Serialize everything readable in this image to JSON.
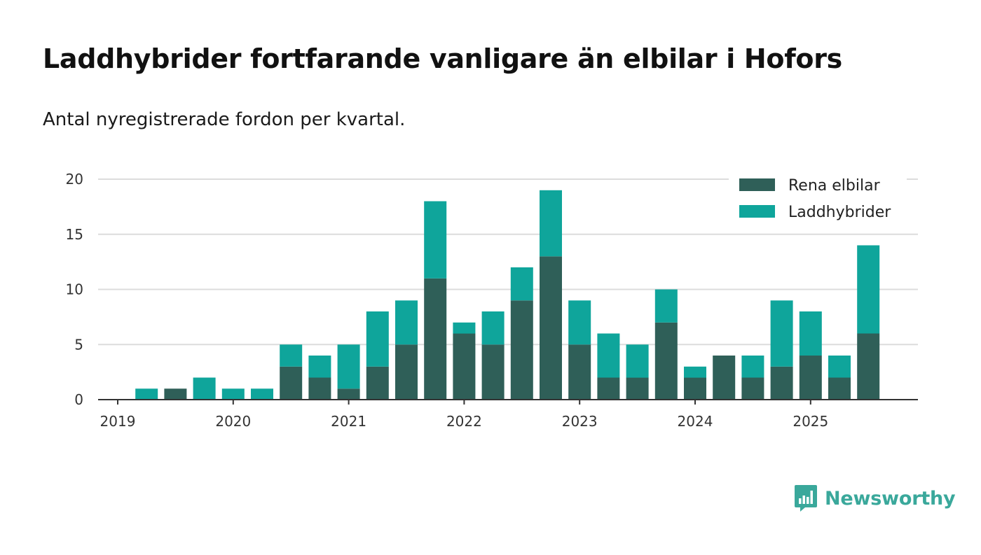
{
  "title": "Laddhybrider fortfarande vanligare än elbilar i Hofors",
  "subtitle": "Antal nyregistrerade fordon per kvartal.",
  "colors": {
    "rena_elbilar": "#2f5f58",
    "laddhybrider": "#0fa59b",
    "grid": "#dcdcdc",
    "axis": "#333333",
    "brand": "#3aa89b"
  },
  "brand": {
    "name": "Newsworthy",
    "icon": "bar-chart-speech-bubble-icon"
  },
  "chart_data": {
    "type": "bar",
    "stacked": true,
    "title": "Laddhybrider fortfarande vanligare än elbilar i Hofors",
    "subtitle": "Antal nyregistrerade fordon per kvartal.",
    "xlabel": "",
    "ylabel": "",
    "ylim": [
      0,
      20
    ],
    "yticks": [
      0,
      5,
      10,
      15,
      20
    ],
    "grid": true,
    "legend_position": "top-right",
    "xtick_labels": [
      "2019",
      "2020",
      "2021",
      "2022",
      "2023",
      "2024",
      "2025"
    ],
    "categories": [
      "2019 Q1",
      "2019 Q2",
      "2019 Q3",
      "2019 Q4",
      "2020 Q1",
      "2020 Q2",
      "2020 Q3",
      "2020 Q4",
      "2021 Q1",
      "2021 Q2",
      "2021 Q3",
      "2021 Q4",
      "2022 Q1",
      "2022 Q2",
      "2022 Q3",
      "2022 Q4",
      "2023 Q1",
      "2023 Q2",
      "2023 Q3",
      "2023 Q4",
      "2024 Q1",
      "2024 Q2",
      "2024 Q3",
      "2024 Q4",
      "2025 Q1",
      "2025 Q2",
      "2025 Q3"
    ],
    "series": [
      {
        "name": "Rena elbilar",
        "values": [
          0,
          0,
          1,
          0,
          0,
          0,
          3,
          2,
          1,
          3,
          5,
          11,
          6,
          5,
          9,
          13,
          5,
          2,
          2,
          7,
          2,
          4,
          2,
          3,
          4,
          2,
          6
        ]
      },
      {
        "name": "Laddhybrider",
        "values": [
          0,
          1,
          0,
          2,
          1,
          1,
          2,
          2,
          4,
          5,
          4,
          7,
          1,
          3,
          3,
          6,
          4,
          4,
          3,
          3,
          1,
          0,
          2,
          6,
          4,
          2,
          8
        ]
      }
    ]
  }
}
